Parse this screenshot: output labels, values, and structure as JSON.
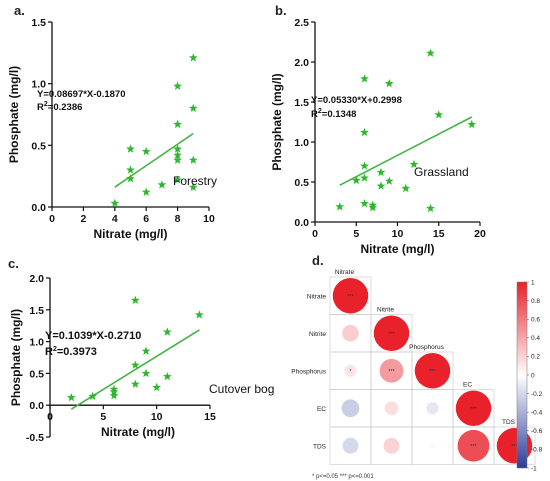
{
  "colors": {
    "marker": "#2eb82e",
    "fit_line": "#43b343",
    "positive": "#e8212a",
    "negative": "#2b3b98"
  },
  "chart_data": [
    {
      "id": "a",
      "type": "scatter",
      "panel_label": "a.",
      "title": "",
      "xlabel": "Nitrate (mg/l)",
      "ylabel": "Phosphate (mg/l)",
      "xlim": [
        0,
        10
      ],
      "ylim": [
        0,
        1.5
      ],
      "xticks": [
        0,
        2,
        4,
        6,
        8,
        10
      ],
      "yticks": [
        0.0,
        0.5,
        1.0,
        1.5
      ],
      "xtick_labels": [
        "0",
        "2",
        "4",
        "6",
        "8",
        "10"
      ],
      "ytick_labels": [
        "0.0",
        "0.5",
        "1.0",
        "1.5"
      ],
      "equation": "Y=0.08697*X-0.1870",
      "r2_prefix": "R",
      "r2_sup": "2",
      "r2_value": "=0.2386",
      "annotation": "Forestry",
      "fit": {
        "slope": 0.08697,
        "intercept": -0.187,
        "x_range": [
          4,
          9
        ]
      },
      "points": [
        [
          4,
          0.03
        ],
        [
          5,
          0.3
        ],
        [
          5,
          0.23
        ],
        [
          5,
          0.47
        ],
        [
          6,
          0.12
        ],
        [
          6,
          0.45
        ],
        [
          7,
          0.18
        ],
        [
          8,
          0.98
        ],
        [
          8,
          0.67
        ],
        [
          8,
          0.47
        ],
        [
          8,
          0.42
        ],
        [
          8,
          0.38
        ],
        [
          9,
          1.21
        ],
        [
          9,
          0.8
        ],
        [
          9,
          0.38
        ],
        [
          9,
          0.16
        ],
        [
          8,
          0.22
        ]
      ]
    },
    {
      "id": "b",
      "type": "scatter",
      "panel_label": "b.",
      "title": "",
      "xlabel": "Nitrate (mg/l)",
      "ylabel": "Phosphate (mg/l)",
      "xlim": [
        0,
        20
      ],
      "ylim": [
        0,
        2.5
      ],
      "xticks": [
        0,
        5,
        10,
        15,
        20
      ],
      "yticks": [
        0.0,
        0.5,
        1.0,
        1.5,
        2.0,
        2.5
      ],
      "xtick_labels": [
        "0",
        "5",
        "10",
        "15",
        "20"
      ],
      "ytick_labels": [
        "0.0",
        "0.5",
        "1.0",
        "1.5",
        "2.0",
        "2.5"
      ],
      "equation": "Y=0.05330*X+0.2998",
      "r2_prefix": "R",
      "r2_sup": "2",
      "r2_value": "=0.1348",
      "annotation": "Grassland",
      "fit": {
        "slope": 0.0533,
        "intercept": 0.2998,
        "x_range": [
          3,
          19
        ]
      },
      "points": [
        [
          3,
          0.19
        ],
        [
          5,
          0.52
        ],
        [
          6,
          1.79
        ],
        [
          6,
          1.12
        ],
        [
          6,
          0.7
        ],
        [
          6,
          0.55
        ],
        [
          6,
          0.23
        ],
        [
          7,
          0.21
        ],
        [
          7,
          0.18
        ],
        [
          8,
          0.62
        ],
        [
          8,
          0.45
        ],
        [
          9,
          1.73
        ],
        [
          9,
          0.51
        ],
        [
          11,
          0.42
        ],
        [
          12,
          0.72
        ],
        [
          14,
          2.11
        ],
        [
          14,
          0.17
        ],
        [
          15,
          1.34
        ],
        [
          19,
          1.22
        ]
      ]
    },
    {
      "id": "c",
      "type": "scatter",
      "panel_label": "c.",
      "title": "",
      "xlabel": "Nitrate (mg/l)",
      "ylabel": "Phosphate (mg/l)",
      "xlim": [
        0,
        15
      ],
      "ylim": [
        -0.5,
        2.0
      ],
      "xticks": [
        0,
        5,
        10,
        15
      ],
      "yticks": [
        -0.5,
        0.0,
        0.5,
        1.0,
        1.5,
        2.0
      ],
      "xtick_labels": [
        "0",
        "5",
        "10",
        "15"
      ],
      "ytick_labels": [
        "-0.5",
        "0.0",
        "0.5",
        "1.0",
        "1.5",
        "2.0"
      ],
      "equation": "Y=0.1039*X-0.2710",
      "r2_prefix": "R",
      "r2_sup": "2",
      "r2_value": "=0.3973",
      "annotation": "Cutover bog",
      "fit": {
        "slope": 0.1039,
        "intercept": -0.271,
        "x_range": [
          2,
          14
        ]
      },
      "points": [
        [
          2,
          0.12
        ],
        [
          4,
          0.14
        ],
        [
          6,
          0.25
        ],
        [
          6,
          0.21
        ],
        [
          6,
          0.15
        ],
        [
          8,
          1.65
        ],
        [
          8,
          0.63
        ],
        [
          8,
          0.33
        ],
        [
          9,
          0.5
        ],
        [
          9,
          0.85
        ],
        [
          10,
          0.28
        ],
        [
          11,
          1.15
        ],
        [
          11,
          0.45
        ],
        [
          14,
          1.42
        ]
      ]
    },
    {
      "id": "d",
      "type": "heatmap",
      "panel_label": "d.",
      "title": "",
      "variables": [
        "Nitrate",
        "Nitrite",
        "Phosphorus",
        "EC",
        "TDS"
      ],
      "correlations": [
        [
          1.0,
          null,
          null,
          null,
          null
        ],
        [
          0.22,
          1.0,
          null,
          null,
          null
        ],
        [
          0.12,
          0.45,
          1.0,
          null,
          null
        ],
        [
          -0.25,
          0.15,
          -0.12,
          1.0,
          null
        ],
        [
          -0.2,
          0.2,
          0.03,
          0.8,
          1.0
        ]
      ],
      "significance": [
        [
          "***",
          "",
          "",
          "",
          ""
        ],
        [
          "",
          "***",
          "",
          "",
          ""
        ],
        [
          "*",
          "***",
          "***",
          "",
          ""
        ],
        [
          "",
          "",
          "",
          "***",
          ""
        ],
        [
          "",
          "",
          "",
          "***",
          "***"
        ]
      ],
      "legend_ticks": [
        "1",
        "0.8",
        "0.6",
        "0.4",
        "0.2",
        "0",
        "-0.2",
        "-0.4",
        "-0.6",
        "-0.8",
        "-1"
      ],
      "legend_range": [
        -1,
        1
      ],
      "legend_placement": "right",
      "footnote": "*  p<=0.05    *** p<=0.001"
    }
  ]
}
